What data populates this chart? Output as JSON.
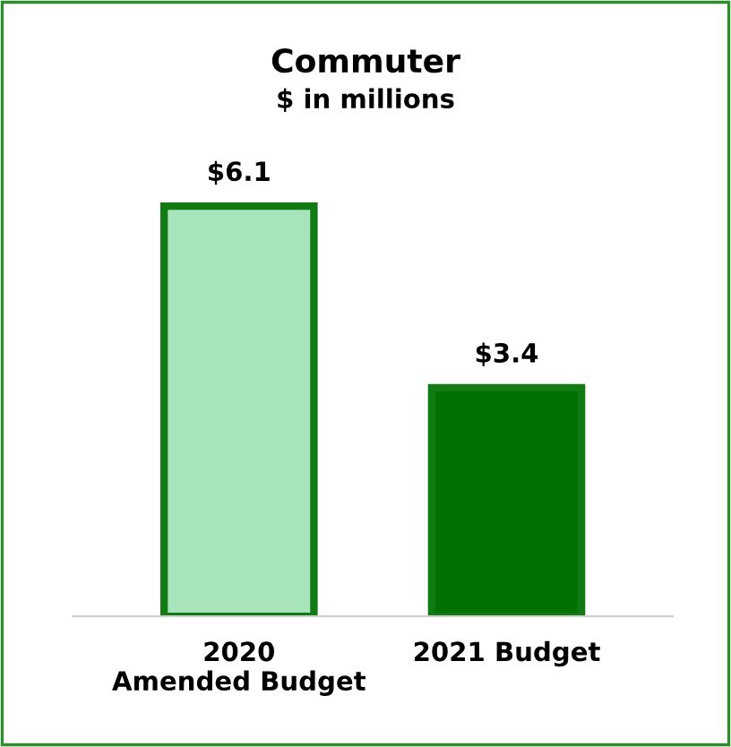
{
  "chart_data": {
    "type": "bar",
    "title": "Commuter",
    "subtitle": "$ in millions",
    "categories": [
      "2020\nAmended Budget",
      "2021 Budget"
    ],
    "values": [
      6.1,
      3.4
    ],
    "colors": [
      "#a8e4bb",
      "#007000"
    ],
    "value_labels": [
      "$6.1",
      "$3.4"
    ]
  }
}
